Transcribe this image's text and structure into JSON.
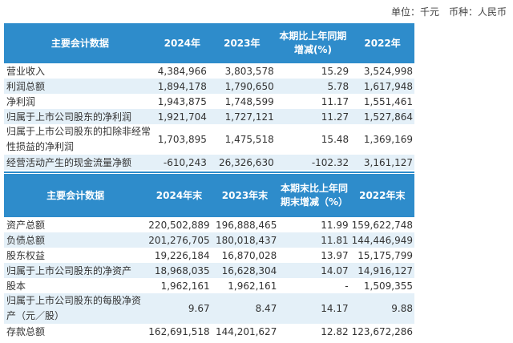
{
  "unit_note": "单位：千元　币种：人民币",
  "table1": {
    "headers": [
      "主要会计数据",
      "2024年",
      "2023年",
      "本期比上年同期增减(%)",
      "2022年"
    ],
    "rows": [
      [
        "营业收入",
        "4,384,966",
        "3,803,578",
        "15.29",
        "3,524,998"
      ],
      [
        "利润总额",
        "1,894,178",
        "1,790,650",
        "5.78",
        "1,617,948"
      ],
      [
        "净利润",
        "1,943,875",
        "1,748,599",
        "11.17",
        "1,551,461"
      ],
      [
        "归属于上市公司股东的净利润",
        "1,921,704",
        "1,727,121",
        "11.27",
        "1,527,864"
      ],
      [
        "归属于上市公司股东的扣除非经常性损益的净利润",
        "1,703,895",
        "1,475,518",
        "15.48",
        "1,369,169"
      ],
      [
        "经营活动产生的现金流量净额",
        "-610,243",
        "26,326,630",
        "-102.32",
        "3,161,127"
      ]
    ]
  },
  "table2": {
    "headers": [
      "主要会计数据",
      "2024年末",
      "2023年末",
      "本期末比上年同期末增减（%）",
      "2022年末"
    ],
    "rows": [
      [
        "资产总额",
        "220,502,889",
        "196,888,465",
        "11.99",
        "159,622,748"
      ],
      [
        "负债总额",
        "201,276,705",
        "180,018,437",
        "11.81",
        "144,446,949"
      ],
      [
        "股东权益",
        "19,226,184",
        "16,870,028",
        "13.97",
        "15,175,799"
      ],
      [
        "归属于上市公司股东的净资产",
        "18,968,035",
        "16,628,304",
        "14.07",
        "14,916,127"
      ],
      [
        "股本",
        "1,962,161",
        "1,962,161",
        "-",
        "1,509,355"
      ],
      [
        "归属于上市公司股东的每股净资产（元／股）",
        "9.67",
        "8.47",
        "14.17",
        "9.88"
      ],
      [
        "存款总额",
        "162,691,518",
        "144,201,627",
        "12.82",
        "123,672,286"
      ]
    ]
  }
}
